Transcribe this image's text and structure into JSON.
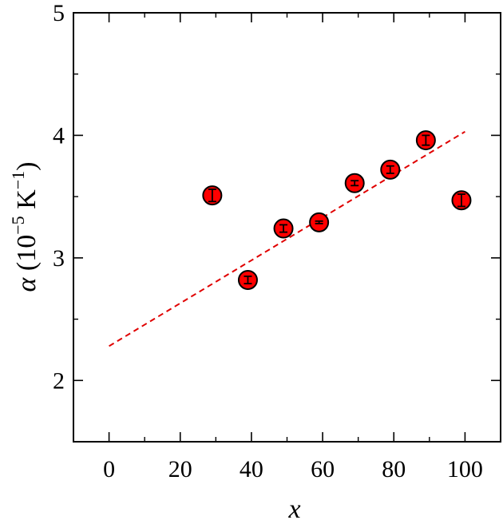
{
  "chart_data": {
    "type": "scatter",
    "title": "",
    "xlabel": "x",
    "ylabel": {
      "symbol": "α",
      "open": " (10",
      "exp": "−5",
      "unit": " K",
      "unit_exp": "−1",
      "close": ")"
    },
    "xlim": [
      -10,
      110
    ],
    "ylim": [
      1.5,
      5
    ],
    "x_ticks": [
      0,
      20,
      40,
      60,
      80,
      100
    ],
    "x_tick_labels": [
      "0",
      "20",
      "40",
      "60",
      "80",
      "100"
    ],
    "x_minor_ticks": [
      -10,
      10,
      30,
      50,
      70,
      90,
      110
    ],
    "y_ticks": [
      2,
      3,
      4,
      5
    ],
    "y_tick_labels": [
      "2",
      "3",
      "4",
      "5"
    ],
    "y_minor_ticks": [
      1.5,
      2.5,
      3.5,
      4.5
    ],
    "grid": false,
    "series": [
      {
        "marker": "circle",
        "color": "#ff0000",
        "edgecolor": "#000000",
        "points": [
          {
            "x": 29,
            "y": 3.51,
            "yerr": 0.05
          },
          {
            "x": 39,
            "y": 2.82,
            "yerr": 0.03
          },
          {
            "x": 49,
            "y": 3.24,
            "yerr": 0.03
          },
          {
            "x": 59,
            "y": 3.29,
            "yerr": 0.01
          },
          {
            "x": 69,
            "y": 3.61,
            "yerr": 0.02
          },
          {
            "x": 79,
            "y": 3.72,
            "yerr": 0.03
          },
          {
            "x": 89,
            "y": 3.96,
            "yerr": 0.04
          },
          {
            "x": 99,
            "y": 3.47,
            "yerr": 0.05
          }
        ]
      }
    ],
    "fit_line": {
      "style": "dashed",
      "color": "#e00000",
      "x": [
        0,
        100
      ],
      "y": [
        2.28,
        4.03
      ]
    }
  }
}
